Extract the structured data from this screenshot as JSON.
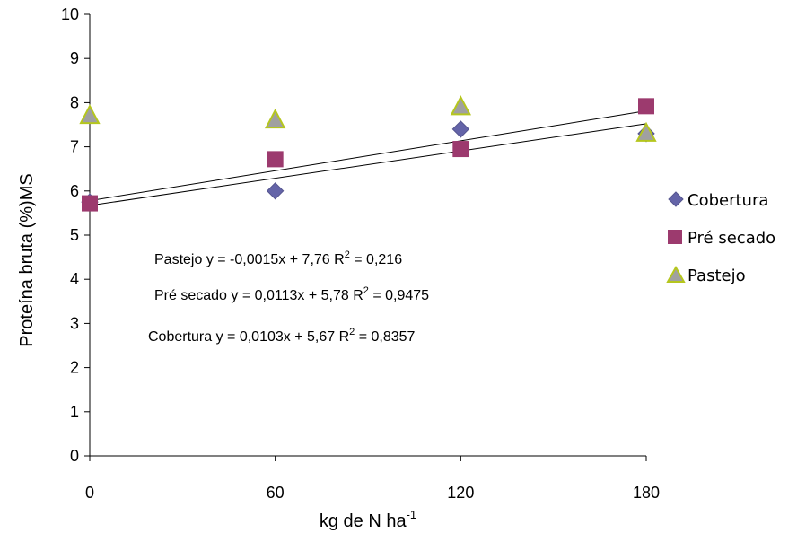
{
  "chart_data": {
    "type": "scatter",
    "x_ticks": [
      0,
      60,
      120,
      180
    ],
    "y_ticks": [
      0,
      1,
      2,
      3,
      4,
      5,
      6,
      7,
      8,
      9,
      10
    ],
    "xlim": [
      0,
      180
    ],
    "ylim": [
      0,
      10
    ],
    "xlabel": "kg de N ha",
    "xlabel_sup": "-1",
    "ylabel": "Proteína bruta (%)MS",
    "grid": false,
    "legend_position": "right",
    "series": [
      {
        "name": "Cobertura",
        "marker": "diamond",
        "color": "#6464a8",
        "x": [
          0,
          60,
          120,
          180
        ],
        "y": [
          5.75,
          6.0,
          7.4,
          7.3
        ]
      },
      {
        "name": "Pré secado",
        "marker": "square",
        "color": "#9c3a6e",
        "x": [
          0,
          60,
          120,
          180
        ],
        "y": [
          5.72,
          6.72,
          6.95,
          7.92
        ]
      },
      {
        "name": "Pastejo",
        "marker": "triangle",
        "color": "#a6b82c",
        "x": [
          0,
          60,
          120,
          180
        ],
        "y": [
          7.7,
          7.6,
          7.9,
          7.3
        ]
      }
    ],
    "trendlines": [
      {
        "series": "Cobertura",
        "slope": 0.0103,
        "intercept": 5.67
      },
      {
        "series": "Pré secado",
        "slope": 0.0113,
        "intercept": 5.78
      }
    ],
    "annotations": [
      {
        "prefix": "Pastejo y = -0,0015x + 7,76 R",
        "sup": "2",
        "suffix": " = 0,216"
      },
      {
        "prefix": "Pré secado y = 0,0113x + 5,78 R",
        "sup": "2",
        "suffix": " = 0,9475"
      },
      {
        "prefix": "Cobertura y = 0,0103x + 5,67 R",
        "sup": "2",
        "suffix": " = 0,8357"
      }
    ]
  }
}
